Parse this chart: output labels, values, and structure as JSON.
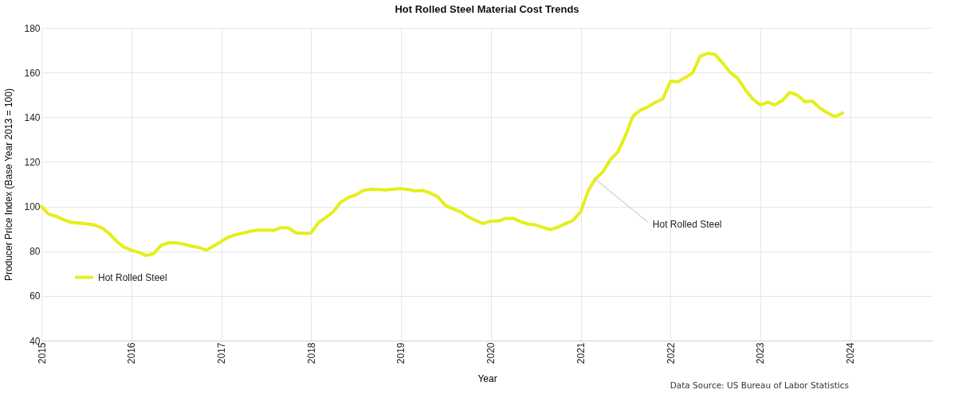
{
  "chart_data": {
    "type": "line",
    "title": "Hot Rolled Steel Material Cost Trends",
    "xlabel": "Year",
    "ylabel": "Producer Price Index  (Base Year 2013 = 100)",
    "x": [
      "2015-01",
      "2015-02",
      "2015-03",
      "2015-04",
      "2015-05",
      "2015-06",
      "2015-07",
      "2015-08",
      "2015-09",
      "2015-10",
      "2015-11",
      "2015-12",
      "2016-01",
      "2016-02",
      "2016-03",
      "2016-04",
      "2016-05",
      "2016-06",
      "2016-07",
      "2016-08",
      "2016-09",
      "2016-10",
      "2016-11",
      "2016-12",
      "2017-01",
      "2017-02",
      "2017-03",
      "2017-04",
      "2017-05",
      "2017-06",
      "2017-07",
      "2017-08",
      "2017-09",
      "2017-10",
      "2017-11",
      "2017-12",
      "2018-01",
      "2018-02",
      "2018-03",
      "2018-04",
      "2018-05",
      "2018-06",
      "2018-07",
      "2018-08",
      "2018-09",
      "2018-10",
      "2018-11",
      "2018-12",
      "2019-01",
      "2019-02",
      "2019-03",
      "2019-04",
      "2019-05",
      "2019-06",
      "2019-07",
      "2019-08",
      "2019-09",
      "2019-10",
      "2019-11",
      "2019-12",
      "2020-01",
      "2020-02",
      "2020-03",
      "2020-04",
      "2020-05",
      "2020-06",
      "2020-07",
      "2020-08",
      "2020-09",
      "2020-10",
      "2020-11",
      "2020-12",
      "2021-01",
      "2021-02",
      "2021-03",
      "2021-04",
      "2021-05",
      "2021-06",
      "2021-07",
      "2021-08",
      "2021-09",
      "2021-10",
      "2021-11",
      "2021-12",
      "2022-01",
      "2022-02",
      "2022-03",
      "2022-04",
      "2022-05",
      "2022-06",
      "2022-07",
      "2022-08",
      "2022-09",
      "2022-10",
      "2022-11",
      "2022-12",
      "2023-01",
      "2023-02",
      "2023-03",
      "2023-04",
      "2023-05",
      "2023-06",
      "2023-07",
      "2023-08",
      "2023-09",
      "2023-10",
      "2023-11",
      "2023-12"
    ],
    "series": [
      {
        "name": "Hot Rolled Steel",
        "color": "#e6ee1c",
        "values": [
          100,
          96.5,
          95.7,
          94.1,
          92.9,
          92.6,
          92.3,
          91.8,
          90.6,
          88.2,
          84.6,
          81.9,
          80.5,
          79.5,
          78.1,
          78.9,
          82.6,
          83.8,
          83.7,
          83.2,
          82.3,
          81.7,
          80.5,
          82.3,
          84.4,
          86.4,
          87.4,
          88.2,
          89,
          89.4,
          89.4,
          89.3,
          90.6,
          90.4,
          88.2,
          88,
          88.2,
          92.9,
          95,
          97.7,
          101.9,
          104,
          105.2,
          107.2,
          107.8,
          107.6,
          107.4,
          107.8,
          108,
          107.6,
          107,
          107.2,
          106,
          104.3,
          100.5,
          98.9,
          97.7,
          95.4,
          93.8,
          92.4,
          93.5,
          93.5,
          94.7,
          94.7,
          93.3,
          92.1,
          91.8,
          90.6,
          89.7,
          90.8,
          92.4,
          93.8,
          97.7,
          107.2,
          112.3,
          115.5,
          120.9,
          124.4,
          131.5,
          140.4,
          143.2,
          144.6,
          146.7,
          148.2,
          156.1,
          155.9,
          157.7,
          159.8,
          167.2,
          168.6,
          168.1,
          164.2,
          160,
          157.4,
          152.3,
          148.2,
          145.5,
          146.7,
          145.5,
          147.5,
          151.1,
          149.9,
          147,
          147.2,
          144,
          142,
          140.2,
          141.9
        ]
      }
    ],
    "xlim": [
      "2015-01",
      "2024-12"
    ],
    "xticks": [
      {
        "value": "2015",
        "label": "2015"
      },
      {
        "value": "2016",
        "label": "2016"
      },
      {
        "value": "2017",
        "label": "2017"
      },
      {
        "value": "2018",
        "label": "2018"
      },
      {
        "value": "2019",
        "label": "2019"
      },
      {
        "value": "2020",
        "label": "2020"
      },
      {
        "value": "2021",
        "label": "2021"
      },
      {
        "value": "2022",
        "label": "2022"
      },
      {
        "value": "2023",
        "label": "2023"
      },
      {
        "value": "2024",
        "label": "2024"
      }
    ],
    "ylim": [
      40,
      180
    ],
    "yticks": [
      40,
      60,
      80,
      100,
      120,
      140,
      160,
      180
    ],
    "grid": true,
    "legend": "bottom left",
    "marker": "none",
    "line_style": "solid",
    "annotations": [
      {
        "text": "Hot Rolled Steel",
        "x": "2021-03",
        "y": 112.3
      },
      "Data Source: US Bureau of Labor Statistics"
    ]
  }
}
